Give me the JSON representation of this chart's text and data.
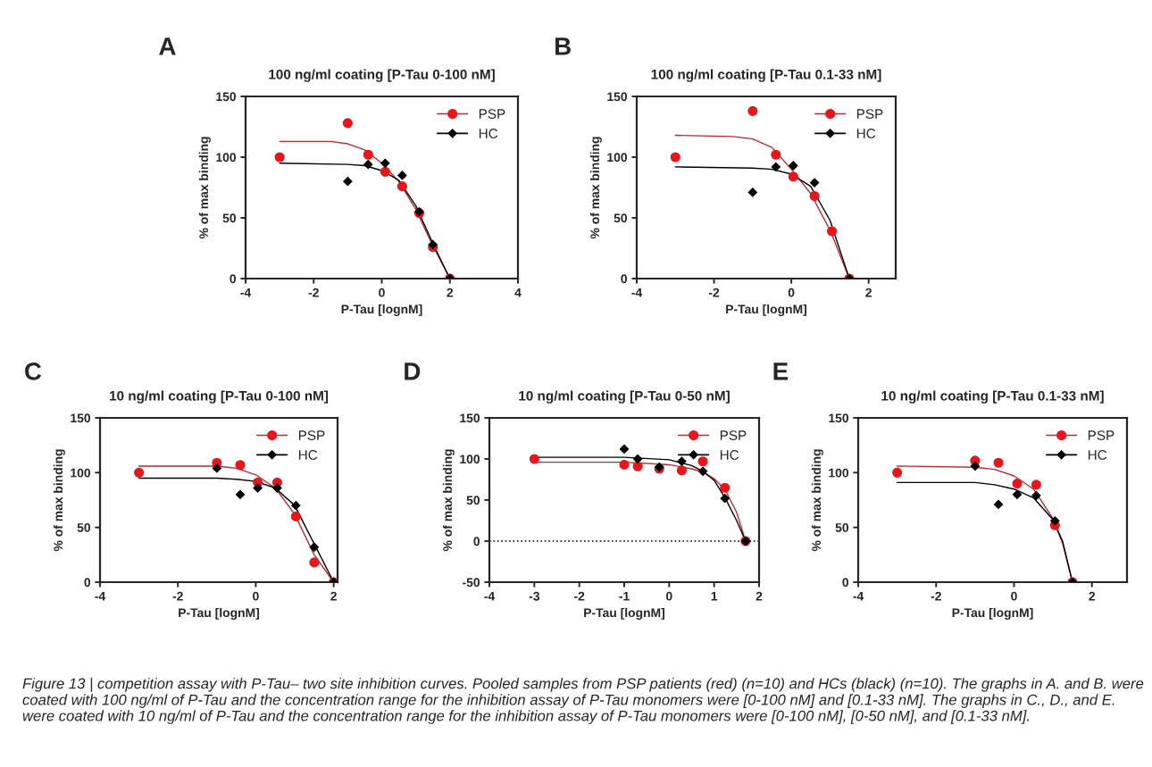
{
  "chart_data": [
    {
      "type": "scatter",
      "title": "100 ng/ml coating [P-Tau 0-100 nM]",
      "xlabel": "P-Tau [lognM]",
      "ylabel": "% of max binding",
      "annotations": [
        "A"
      ],
      "xlim": [
        -4,
        4
      ],
      "xticks": [
        -4,
        -2,
        0,
        2,
        4
      ],
      "ylim": [
        0,
        150
      ],
      "yticks": [
        0,
        50,
        100,
        150
      ],
      "legend": "top right",
      "grid": false,
      "series": [
        {
          "name": "PSP",
          "type": "scatter",
          "marker": "circle",
          "color": "#e8161c",
          "x": [
            -3,
            -1,
            -0.4,
            0.1,
            0.6,
            1.1,
            1.5,
            2
          ],
          "values": [
            100,
            128,
            102,
            88,
            76,
            54,
            26,
            0
          ]
        },
        {
          "name": "HC",
          "type": "scatter",
          "marker": "diamond",
          "color": "#000000",
          "x": [
            -1,
            -0.4,
            0.1,
            0.6,
            1.1,
            1.5,
            2
          ],
          "values": [
            80,
            94,
            95,
            85,
            55,
            28,
            0
          ]
        },
        {
          "type": "line",
          "color": "#c0282d",
          "x": [
            -3,
            -1.5,
            -1,
            -0.5,
            0,
            0.5,
            1,
            1.5,
            2
          ],
          "values": [
            113,
            113,
            111,
            106,
            95,
            80,
            57,
            27,
            0
          ]
        },
        {
          "type": "line",
          "color": "#000000",
          "x": [
            -3,
            -1,
            -0.5,
            0,
            0.5,
            1,
            1.5,
            2
          ],
          "values": [
            95,
            94,
            93,
            89,
            81,
            60,
            29,
            0
          ]
        }
      ]
    },
    {
      "type": "scatter",
      "title": "100 ng/ml coating [P-Tau 0.1-33 nM]",
      "xlabel": "P-Tau [lognM]",
      "ylabel": "% of max binding",
      "annotations": [
        "B"
      ],
      "xlim": [
        -4,
        2.7
      ],
      "xticks": [
        -4,
        -2,
        0,
        2
      ],
      "ylim": [
        0,
        150
      ],
      "yticks": [
        0,
        50,
        100,
        150
      ],
      "legend": "top right",
      "grid": false,
      "series": [
        {
          "name": "PSP",
          "type": "scatter",
          "marker": "circle",
          "color": "#e8161c",
          "x": [
            -3,
            -1,
            -0.4,
            0.05,
            0.6,
            1.05,
            1.5
          ],
          "values": [
            100,
            138,
            102,
            84,
            68,
            39,
            0
          ]
        },
        {
          "name": "HC",
          "type": "scatter",
          "marker": "diamond",
          "color": "#000000",
          "x": [
            -1,
            -0.4,
            0.05,
            0.6,
            1.05,
            1.5
          ],
          "values": [
            71,
            92,
            93,
            79,
            null,
            0
          ]
        },
        {
          "type": "line",
          "color": "#c0282d",
          "x": [
            -3,
            -1.5,
            -1,
            -0.5,
            0,
            0.5,
            1,
            1.5
          ],
          "values": [
            118,
            117,
            115,
            108,
            90,
            70,
            40,
            0
          ]
        },
        {
          "type": "line",
          "color": "#000000",
          "x": [
            -3,
            -1,
            -0.5,
            0,
            0.5,
            1,
            1.5
          ],
          "values": [
            92,
            91,
            90,
            86,
            76,
            48,
            0
          ]
        }
      ]
    },
    {
      "type": "scatter",
      "title": "10 ng/ml coating [P-Tau 0-100 nM]",
      "xlabel": "P-Tau [lognM]",
      "ylabel": "% of max binding",
      "annotations": [
        "C"
      ],
      "xlim": [
        -4,
        2.1
      ],
      "xticks": [
        -4,
        -2,
        0,
        2
      ],
      "ylim": [
        0,
        150
      ],
      "yticks": [
        0,
        50,
        100,
        150
      ],
      "legend": "top right",
      "grid": false,
      "series": [
        {
          "name": "PSP",
          "type": "scatter",
          "marker": "circle",
          "color": "#e8161c",
          "x": [
            -3,
            -1,
            -0.4,
            0.05,
            0.55,
            1.03,
            1.5,
            2
          ],
          "values": [
            100,
            109,
            107,
            91,
            91,
            60,
            18,
            0
          ]
        },
        {
          "name": "HC",
          "type": "scatter",
          "marker": "diamond",
          "color": "#000000",
          "x": [
            -1,
            -0.4,
            0.05,
            0.55,
            1.03,
            1.5,
            2
          ],
          "values": [
            104,
            80,
            86,
            86,
            70,
            32,
            0
          ]
        },
        {
          "type": "line",
          "color": "#c0282d",
          "x": [
            -3,
            -1,
            -0.5,
            0,
            0.5,
            1,
            1.5,
            2
          ],
          "values": [
            106,
            106,
            104,
            98,
            86,
            62,
            25,
            0
          ]
        },
        {
          "type": "line",
          "color": "#000000",
          "x": [
            -3,
            -1,
            -0.5,
            0,
            0.5,
            1,
            1.5,
            2
          ],
          "values": [
            95,
            95,
            94,
            92,
            86,
            70,
            35,
            0
          ]
        }
      ]
    },
    {
      "type": "scatter",
      "title": "10 ng/ml coating [P-Tau 0-50 nM]",
      "xlabel": "P-Tau [lognM]",
      "ylabel": "% of max binding",
      "annotations": [
        "D"
      ],
      "xlim": [
        -4,
        2
      ],
      "xticks": [
        -4,
        -3,
        -2,
        -1,
        0,
        1,
        2
      ],
      "ylim": [
        -50,
        150
      ],
      "yticks": [
        -50,
        0,
        50,
        100,
        150
      ],
      "legend": "top right",
      "grid": false,
      "ref_lines": [
        {
          "axis": "y",
          "value": 0,
          "color": "#000000",
          "line_style": "dotted"
        }
      ],
      "series": [
        {
          "name": "PSP",
          "type": "scatter",
          "marker": "circle",
          "color": "#e8161c",
          "x": [
            -3,
            -1,
            -0.7,
            -0.22,
            0.28,
            0.75,
            1.24,
            1.7
          ],
          "values": [
            100,
            93,
            91,
            88,
            86,
            97,
            65,
            0
          ]
        },
        {
          "name": "HC",
          "type": "scatter",
          "marker": "diamond",
          "color": "#000000",
          "x": [
            -1,
            -0.7,
            -0.22,
            0.28,
            0.75,
            1.24,
            1.7
          ],
          "values": [
            112,
            100,
            90,
            97,
            85,
            52,
            0
          ]
        },
        {
          "type": "line",
          "color": "#c0282d",
          "x": [
            -3,
            -1,
            0,
            0.5,
            0.75,
            1,
            1.25,
            1.5,
            1.7
          ],
          "values": [
            96,
            96,
            93,
            88,
            84,
            76,
            62,
            35,
            0
          ]
        },
        {
          "type": "line",
          "color": "#000000",
          "x": [
            -3,
            -1,
            0,
            0.5,
            0.75,
            1,
            1.25,
            1.5,
            1.7
          ],
          "values": [
            102,
            102,
            99,
            92,
            85,
            74,
            52,
            25,
            0
          ]
        }
      ]
    },
    {
      "type": "scatter",
      "title": "10 ng/ml coating [P-Tau 0.1-33 nM]",
      "xlabel": "P-Tau [lognM]",
      "ylabel": "% of max binding",
      "annotations": [
        "E",
        "Figure 13 | competition assay with P-Tau– two site inhibition curves. Pooled samples from PSP patients (red) (n=10) and HCs (black) (n=10). The graphs in A. and B. were coated with 100 ng/ml of P-Tau and the concentration range for the inhibition assay of P-Tau monomers were [0-100 nM] and [0.1-33 nM]. The graphs in C., D., and E. were coated with 10 ng/ml of P-Tau and the concentration range for the inhibition assay of P-Tau monomers were [0-100 nM], [0-50 nM], and [0.1-33 nM]."
      ],
      "xlim": [
        -4,
        2.9
      ],
      "xticks": [
        -4,
        -2,
        0,
        2
      ],
      "ylim": [
        0,
        150
      ],
      "yticks": [
        0,
        50,
        100,
        150
      ],
      "legend": "top right",
      "grid": false,
      "series": [
        {
          "name": "PSP",
          "type": "scatter",
          "marker": "circle",
          "color": "#e8161c",
          "x": [
            -3,
            -1,
            -0.4,
            0.08,
            0.57,
            1.05,
            1.5
          ],
          "values": [
            100,
            111,
            109,
            90,
            89,
            52,
            0
          ]
        },
        {
          "name": "HC",
          "type": "scatter",
          "marker": "diamond",
          "color": "#000000",
          "x": [
            -1,
            -0.4,
            0.08,
            0.57,
            1.05,
            1.5
          ],
          "values": [
            106,
            71,
            80,
            79,
            56,
            0
          ]
        },
        {
          "type": "line",
          "color": "#c0282d",
          "x": [
            -3,
            -1,
            -0.5,
            0,
            0.5,
            1,
            1.25,
            1.5
          ],
          "values": [
            106,
            105,
            103,
            97,
            85,
            58,
            35,
            0
          ]
        },
        {
          "type": "line",
          "color": "#000000",
          "x": [
            -3,
            -1,
            -0.5,
            0,
            0.5,
            1,
            1.25,
            1.5
          ],
          "values": [
            91,
            91,
            89,
            85,
            77,
            57,
            37,
            0
          ]
        }
      ]
    }
  ]
}
